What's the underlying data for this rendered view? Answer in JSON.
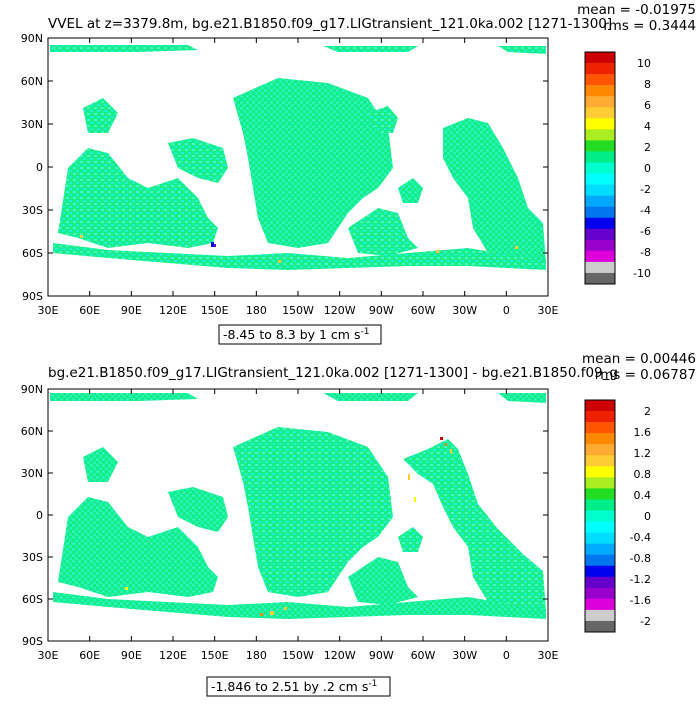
{
  "panels": [
    {
      "title": "VVEL at z=3379.8m, bg.e21.B1850.f09_g17.LIGtransient_121.0ka.002 [1271-1300]",
      "mean_text": "mean = -0.01975",
      "rms_text": "rms = 0.3444",
      "range_text": "-8.45 to 8.3 by 1 cm s",
      "range_exp": "-1",
      "lat_labels": [
        "90N",
        "60N",
        "30N",
        "0",
        "30S",
        "60S",
        "90S"
      ],
      "lon_labels": [
        "30E",
        "60E",
        "90E",
        "120E",
        "150E",
        "180",
        "150W",
        "120W",
        "90W",
        "60W",
        "30W",
        "0",
        "30E"
      ],
      "colorbar_labels": [
        "10",
        "8",
        "6",
        "4",
        "2",
        "0",
        "-2",
        "-4",
        "-6",
        "-8",
        "-10"
      ],
      "colorbar_colors": [
        "#cc0000",
        "#ee2200",
        "#ff5500",
        "#ff8800",
        "#ffaa33",
        "#ffcc33",
        "#ffff00",
        "#aaee22",
        "#22dd22",
        "#00ee88",
        "#00ffcc",
        "#00ffff",
        "#00ddff",
        "#00aaff",
        "#0077ee",
        "#0000ee",
        "#6600cc",
        "#9900cc",
        "#dd00dd",
        "#cccccc",
        "#666666"
      ]
    },
    {
      "title": "bg.e21.B1850.f09_g17.LIGtransient_121.0ka.002 [1271-1300] - bg.e21.B1850.f09_g",
      "mean_text": "mean = 0.00446",
      "rms_text": "rms = 0.06787",
      "range_text": "-1.846 to 2.51 by .2 cm s",
      "range_exp": "-1",
      "lat_labels": [
        "90N",
        "60N",
        "30N",
        "0",
        "30S",
        "60S",
        "90S"
      ],
      "lon_labels": [
        "30E",
        "60E",
        "90E",
        "120E",
        "150E",
        "180",
        "150W",
        "120W",
        "90W",
        "60W",
        "30W",
        "0",
        "30E"
      ],
      "colorbar_labels": [
        "2",
        "1.6",
        "1.2",
        "0.8",
        "0.4",
        "0",
        "-0.4",
        "-0.8",
        "-1.2",
        "-1.6",
        "-2"
      ],
      "colorbar_colors": [
        "#cc0000",
        "#ee2200",
        "#ff5500",
        "#ff8800",
        "#ffaa33",
        "#ffcc33",
        "#ffff00",
        "#aaee22",
        "#22dd22",
        "#00ee88",
        "#00ffcc",
        "#00ffff",
        "#00ddff",
        "#00aaff",
        "#0077ee",
        "#0000ee",
        "#6600cc",
        "#9900cc",
        "#dd00dd",
        "#cccccc",
        "#666666"
      ]
    }
  ],
  "chart_data": [
    {
      "type": "heatmap",
      "title": "VVEL at z=3379.8m, bg.e21.B1850.f09_g17.LIGtransient_121.0ka.002 [1271-1300]",
      "x_ticks": [
        "30E",
        "60E",
        "90E",
        "120E",
        "150E",
        "180",
        "150W",
        "120W",
        "90W",
        "60W",
        "30W",
        "0",
        "30E"
      ],
      "y_ticks": [
        "90N",
        "60N",
        "30N",
        "0",
        "30S",
        "60S",
        "90S"
      ],
      "xlim": [
        30,
        390
      ],
      "ylim": [
        -90,
        90
      ],
      "colorbar_range": [
        -10,
        10
      ],
      "colorbar_ticks": [
        10,
        8,
        6,
        4,
        2,
        0,
        -2,
        -4,
        -6,
        -8,
        -10
      ],
      "mean": -0.01975,
      "rms": 0.3444,
      "data_range": [
        -8.45,
        8.3
      ],
      "contour_interval": 1,
      "units": "cm s-1"
    },
    {
      "type": "heatmap",
      "title": "bg.e21.B1850.f09_g17.LIGtransient_121.0ka.002 [1271-1300] - bg.e21.B1850.f09_g",
      "x_ticks": [
        "30E",
        "60E",
        "90E",
        "120E",
        "150E",
        "180",
        "150W",
        "120W",
        "90W",
        "60W",
        "30W",
        "0",
        "30E"
      ],
      "y_ticks": [
        "90N",
        "60N",
        "30N",
        "0",
        "30S",
        "60S",
        "90S"
      ],
      "xlim": [
        30,
        390
      ],
      "ylim": [
        -90,
        90
      ],
      "colorbar_range": [
        -2,
        2
      ],
      "colorbar_ticks": [
        2,
        1.6,
        1.2,
        0.8,
        0.4,
        0,
        -0.4,
        -0.8,
        -1.2,
        -1.6,
        -2
      ],
      "mean": 0.00446,
      "rms": 0.06787,
      "data_range": [
        -1.846,
        2.51
      ],
      "contour_interval": 0.2,
      "units": "cm s-1"
    }
  ]
}
